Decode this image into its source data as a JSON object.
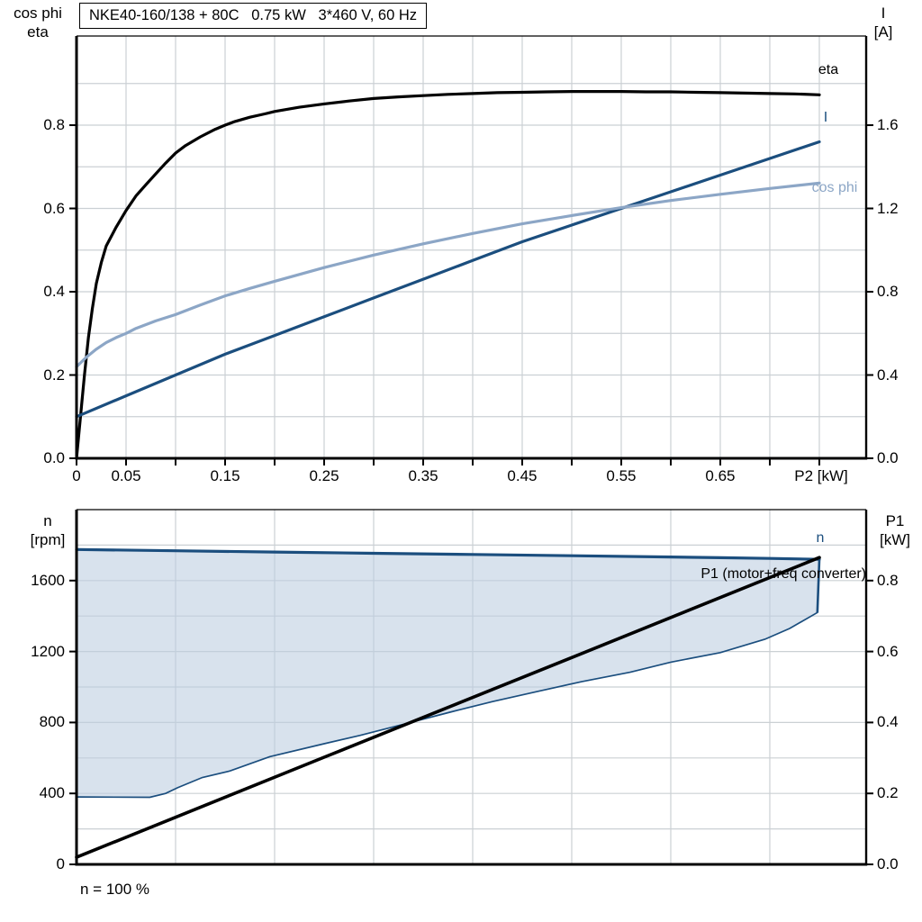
{
  "title_box": {
    "text": "NKE40-160/138 + 80C   0.75 kW   3*460 V, 60 Hz"
  },
  "footer": {
    "text": "n = 100 %"
  },
  "colors": {
    "black": "#000000",
    "dark_blue": "#1b4e7e",
    "light_blue": "#8ca6c6",
    "area_fill": "#bccde0",
    "grid": "#cbd0d4"
  },
  "chart_data": [
    {
      "type": "line",
      "title": "NKE40-160/138 + 80C   0.75 kW   3*460 V, 60 Hz",
      "x_axis": {
        "label": "P2 [kW]",
        "range": [
          0,
          0.7973
        ],
        "grid_step": 0.05,
        "tick_step": 0.05,
        "tick_max": 0.75,
        "label_at": 0.75,
        "labeled_ticks": [
          {
            "v": 0,
            "t": "0"
          },
          {
            "v": 0.05,
            "t": "0.05"
          },
          {
            "v": 0.15,
            "t": "0.15"
          },
          {
            "v": 0.25,
            "t": "0.25"
          },
          {
            "v": 0.35,
            "t": "0.35"
          },
          {
            "v": 0.45,
            "t": "0.45"
          },
          {
            "v": 0.55,
            "t": "0.55"
          },
          {
            "v": 0.65,
            "t": "0.65"
          }
        ]
      },
      "y_left": {
        "header_lines": [
          "cos phi",
          "eta"
        ],
        "range": [
          0,
          1.0141
        ],
        "grid_step": 0.1,
        "ticks": [
          {
            "v": 0.0,
            "t": "0.0"
          },
          {
            "v": 0.2,
            "t": "0.2"
          },
          {
            "v": 0.4,
            "t": "0.4"
          },
          {
            "v": 0.6,
            "t": "0.6"
          },
          {
            "v": 0.8,
            "t": "0.8"
          }
        ]
      },
      "y_right": {
        "header_lines": [
          "I",
          "[A]"
        ],
        "range": [
          0,
          2.0282
        ],
        "ticks": [
          {
            "v": 0.0,
            "t": "0.0"
          },
          {
            "v": 0.4,
            "t": "0.4"
          },
          {
            "v": 0.8,
            "t": "0.8"
          },
          {
            "v": 1.2,
            "t": "1.2"
          },
          {
            "v": 1.6,
            "t": "1.6"
          }
        ]
      },
      "series": [
        {
          "name": "eta",
          "axis": "left",
          "color": "#000000",
          "width": 3.2,
          "points": [
            [
              0,
              0
            ],
            [
              0.004,
              0.1
            ],
            [
              0.008,
              0.2
            ],
            [
              0.012,
              0.29
            ],
            [
              0.016,
              0.36
            ],
            [
              0.02,
              0.42
            ],
            [
              0.025,
              0.47
            ],
            [
              0.03,
              0.51
            ],
            [
              0.04,
              0.555
            ],
            [
              0.05,
              0.595
            ],
            [
              0.06,
              0.63
            ],
            [
              0.07,
              0.657
            ],
            [
              0.08,
              0.683
            ],
            [
              0.09,
              0.709
            ],
            [
              0.1,
              0.733
            ],
            [
              0.11,
              0.751
            ],
            [
              0.125,
              0.772
            ],
            [
              0.14,
              0.79
            ],
            [
              0.15,
              0.8
            ],
            [
              0.16,
              0.809
            ],
            [
              0.175,
              0.819
            ],
            [
              0.19,
              0.827
            ],
            [
              0.2,
              0.833
            ],
            [
              0.225,
              0.843
            ],
            [
              0.25,
              0.851
            ],
            [
              0.275,
              0.858
            ],
            [
              0.3,
              0.864
            ],
            [
              0.325,
              0.868
            ],
            [
              0.35,
              0.871
            ],
            [
              0.375,
              0.874
            ],
            [
              0.4,
              0.876
            ],
            [
              0.425,
              0.878
            ],
            [
              0.45,
              0.879
            ],
            [
              0.475,
              0.88
            ],
            [
              0.5,
              0.881
            ],
            [
              0.525,
              0.881
            ],
            [
              0.55,
              0.881
            ],
            [
              0.575,
              0.88
            ],
            [
              0.6,
              0.88
            ],
            [
              0.625,
              0.879
            ],
            [
              0.65,
              0.878
            ],
            [
              0.675,
              0.877
            ],
            [
              0.7,
              0.876
            ],
            [
              0.725,
              0.875
            ],
            [
              0.75,
              0.873
            ]
          ]
        },
        {
          "name": "I",
          "axis": "right",
          "color": "#1b4e7e",
          "width": 3.2,
          "points": [
            [
              0,
              0.2
            ],
            [
              0.05,
              0.3
            ],
            [
              0.1,
              0.4
            ],
            [
              0.15,
              0.5
            ],
            [
              0.2,
              0.59
            ],
            [
              0.25,
              0.68
            ],
            [
              0.3,
              0.77
            ],
            [
              0.35,
              0.86
            ],
            [
              0.4,
              0.95
            ],
            [
              0.45,
              1.04
            ],
            [
              0.5,
              1.12
            ],
            [
              0.55,
              1.2
            ],
            [
              0.6,
              1.28
            ],
            [
              0.65,
              1.36
            ],
            [
              0.7,
              1.44
            ],
            [
              0.75,
              1.52
            ]
          ]
        },
        {
          "name": "cos phi",
          "axis": "left",
          "color": "#8ca6c6",
          "width": 3.2,
          "points": [
            [
              0,
              0.22
            ],
            [
              0.01,
              0.243
            ],
            [
              0.02,
              0.262
            ],
            [
              0.03,
              0.278
            ],
            [
              0.04,
              0.29
            ],
            [
              0.05,
              0.3
            ],
            [
              0.06,
              0.312
            ],
            [
              0.08,
              0.33
            ],
            [
              0.1,
              0.345
            ],
            [
              0.125,
              0.368
            ],
            [
              0.15,
              0.39
            ],
            [
              0.175,
              0.408
            ],
            [
              0.2,
              0.425
            ],
            [
              0.25,
              0.458
            ],
            [
              0.3,
              0.488
            ],
            [
              0.35,
              0.515
            ],
            [
              0.4,
              0.54
            ],
            [
              0.45,
              0.563
            ],
            [
              0.5,
              0.583
            ],
            [
              0.55,
              0.602
            ],
            [
              0.6,
              0.619
            ],
            [
              0.65,
              0.634
            ],
            [
              0.7,
              0.648
            ],
            [
              0.75,
              0.661
            ]
          ]
        }
      ]
    },
    {
      "type": "line",
      "x_axis": {
        "range": [
          0,
          0.7973
        ],
        "grid_step": 0.1,
        "grid_max": 0.7
      },
      "y_left": {
        "header_lines": [
          "n",
          "[rpm]"
        ],
        "range": [
          0,
          2000
        ],
        "grid_step": 200,
        "ticks": [
          {
            "v": 0,
            "t": "0"
          },
          {
            "v": 400,
            "t": "400"
          },
          {
            "v": 800,
            "t": "800"
          },
          {
            "v": 1200,
            "t": "1200"
          },
          {
            "v": 1600,
            "t": "1600"
          }
        ]
      },
      "y_right": {
        "header_lines": [
          "P1",
          "[kW]"
        ],
        "range": [
          0,
          1.0
        ],
        "ticks": [
          {
            "v": 0.0,
            "t": "0.0"
          },
          {
            "v": 0.2,
            "t": "0.2"
          },
          {
            "v": 0.4,
            "t": "0.4"
          },
          {
            "v": 0.6,
            "t": "0.6"
          },
          {
            "v": 0.8,
            "t": "0.8"
          }
        ]
      },
      "series": [
        {
          "name": "n",
          "axis": "left",
          "color": "#1b4e7e",
          "width": 3.2,
          "points": [
            [
              0,
              1775
            ],
            [
              0.1,
              1768
            ],
            [
              0.2,
              1761
            ],
            [
              0.3,
              1754
            ],
            [
              0.4,
              1747
            ],
            [
              0.5,
              1740
            ],
            [
              0.6,
              1733
            ],
            [
              0.65,
              1729
            ],
            [
              0.7,
              1725
            ],
            [
              0.75,
              1720
            ]
          ]
        },
        {
          "name": "P1 (motor+freq converter)",
          "axis": "right",
          "color": "#000000",
          "width": 3.6,
          "points": [
            [
              0,
              0.02
            ],
            [
              0.25,
              0.302
            ],
            [
              0.5,
              0.583
            ],
            [
              0.75,
              0.865
            ]
          ]
        }
      ],
      "area": {
        "fill": "#bccde0",
        "fill_opacity": 0.58,
        "border_color": "#1b4e7e",
        "lower_boundary": [
          [
            0.748,
            1420
          ],
          [
            0.72,
            1330
          ],
          [
            0.695,
            1269
          ],
          [
            0.65,
            1194
          ],
          [
            0.6,
            1140
          ],
          [
            0.559,
            1083
          ],
          [
            0.51,
            1030
          ],
          [
            0.468,
            978
          ],
          [
            0.42,
            918
          ],
          [
            0.377,
            858
          ],
          [
            0.33,
            790
          ],
          [
            0.286,
            727
          ],
          [
            0.25,
            680
          ],
          [
            0.195,
            607
          ],
          [
            0.155,
            527
          ],
          [
            0.127,
            490
          ],
          [
            0.102,
            432
          ],
          [
            0.09,
            400
          ],
          [
            0.074,
            378
          ],
          [
            0,
            380
          ]
        ],
        "right_edge": [
          [
            0.75,
            1720
          ],
          [
            0.748,
            1420
          ]
        ]
      },
      "annotation": "n = 100 %"
    }
  ]
}
